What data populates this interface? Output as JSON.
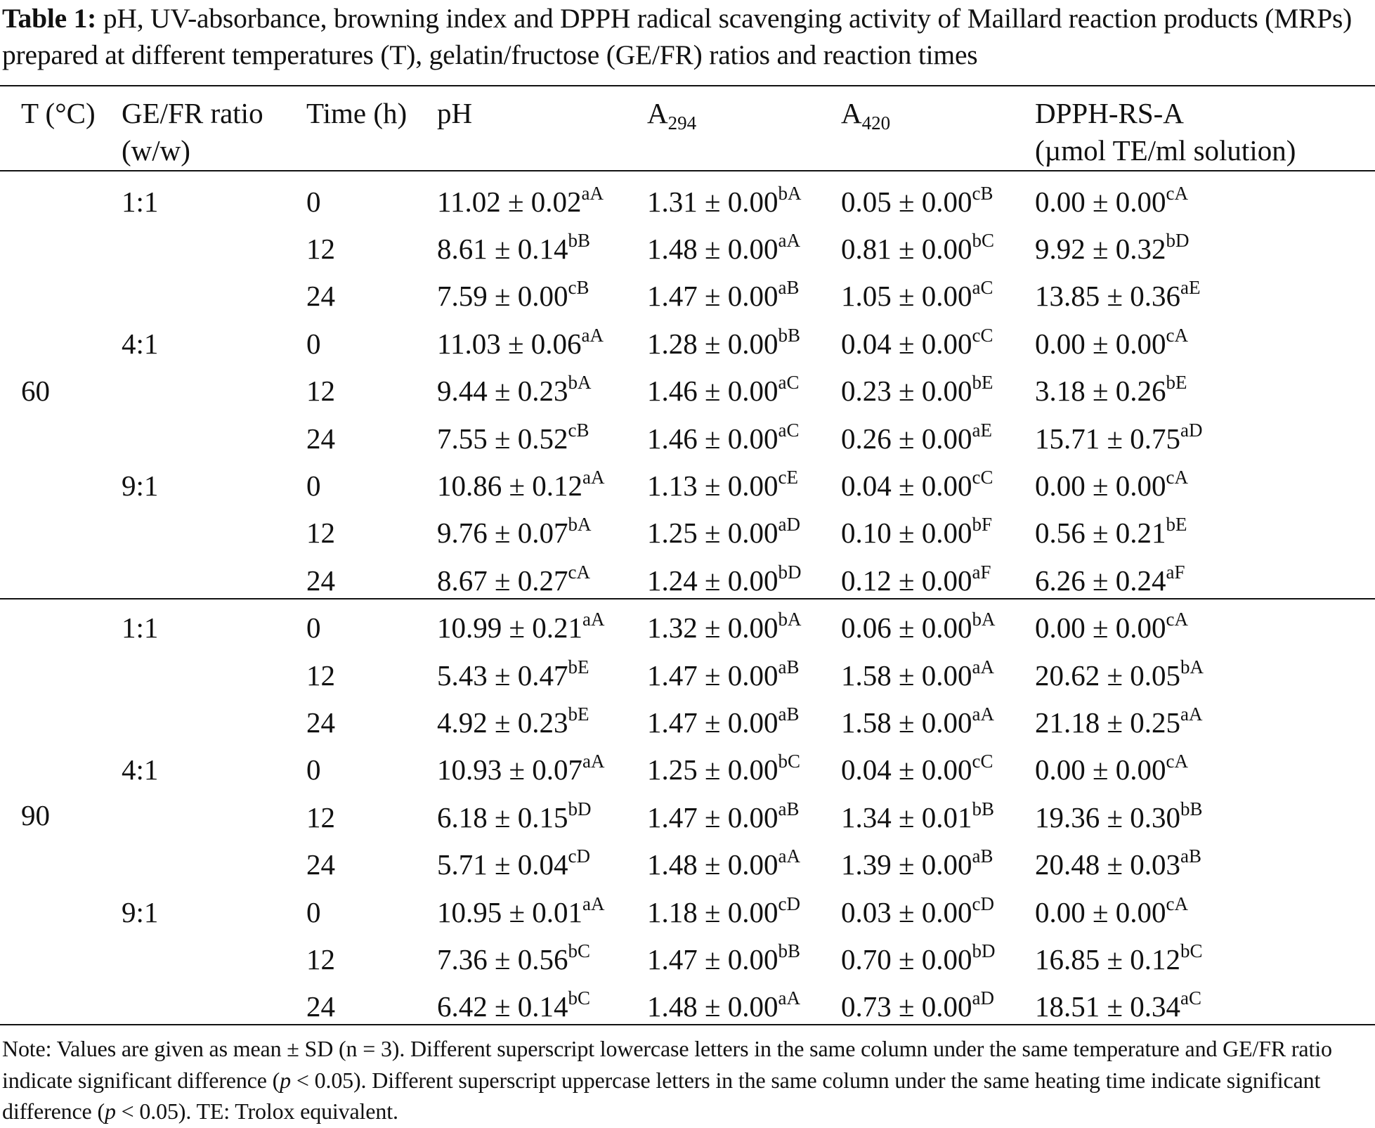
{
  "caption": {
    "label": "Table 1:",
    "text": "pH, UV-absorbance, browning index and DPPH radical scavenging activity of Maillard reaction products (MRPs) prepared at different temperatures (T), gelatin/fructose (GE/FR) ratios and reaction times"
  },
  "headers": {
    "temp": "T (°C)",
    "ratio_line1": "GE/FR ratio",
    "ratio_line2": "(w/w)",
    "time": "Time (h)",
    "ph": "pH",
    "a294_base": "A",
    "a294_sub": "294",
    "a420_base": "A",
    "a420_sub": "420",
    "dpph_line1": "DPPH-RS-A",
    "dpph_line2": "(µmol TE/ml solution)"
  },
  "groups": [
    {
      "temp": "60",
      "rows": [
        {
          "ratio": "1:1",
          "time": "0",
          "ph": "11.02 ± 0.02",
          "ph_sup": "aA",
          "a294": "1.31 ± 0.00",
          "a294_sup": "bA",
          "a420": "0.05 ± 0.00",
          "a420_sup": "cB",
          "dpph": "0.00 ± 0.00",
          "dpph_sup": "cA"
        },
        {
          "ratio": "",
          "time": "12",
          "ph": "8.61 ± 0.14",
          "ph_sup": "bB",
          "a294": "1.48 ± 0.00",
          "a294_sup": "aA",
          "a420": "0.81 ± 0.00",
          "a420_sup": "bC",
          "dpph": "9.92 ± 0.32",
          "dpph_sup": "bD"
        },
        {
          "ratio": "",
          "time": "24",
          "ph": "7.59 ± 0.00",
          "ph_sup": "cB",
          "a294": "1.47 ± 0.00",
          "a294_sup": "aB",
          "a420": "1.05 ± 0.00",
          "a420_sup": "aC",
          "dpph": "13.85 ± 0.36",
          "dpph_sup": "aE"
        },
        {
          "ratio": "4:1",
          "time": "0",
          "ph": "11.03 ± 0.06",
          "ph_sup": "aA",
          "a294": "1.28 ± 0.00",
          "a294_sup": "bB",
          "a420": "0.04 ± 0.00",
          "a420_sup": "cC",
          "dpph": "0.00 ± 0.00",
          "dpph_sup": "cA"
        },
        {
          "ratio": "",
          "time": "12",
          "ph": "9.44 ± 0.23",
          "ph_sup": "bA",
          "a294": "1.46 ± 0.00",
          "a294_sup": "aC",
          "a420": "0.23 ± 0.00",
          "a420_sup": "bE",
          "dpph": "3.18 ± 0.26",
          "dpph_sup": "bE"
        },
        {
          "ratio": "",
          "time": "24",
          "ph": "7.55 ± 0.52",
          "ph_sup": "cB",
          "a294": "1.46 ± 0.00",
          "a294_sup": "aC",
          "a420": "0.26 ± 0.00",
          "a420_sup": "aE",
          "dpph": "15.71 ± 0.75",
          "dpph_sup": "aD"
        },
        {
          "ratio": "9:1",
          "time": "0",
          "ph": "10.86 ± 0.12",
          "ph_sup": "aA",
          "a294": "1.13 ± 0.00",
          "a294_sup": "cE",
          "a420": "0.04 ± 0.00",
          "a420_sup": "cC",
          "dpph": "0.00 ± 0.00",
          "dpph_sup": "cA"
        },
        {
          "ratio": "",
          "time": "12",
          "ph": "9.76 ± 0.07",
          "ph_sup": "bA",
          "a294": "1.25 ± 0.00",
          "a294_sup": "aD",
          "a420": "0.10 ± 0.00",
          "a420_sup": "bF",
          "dpph": "0.56 ± 0.21",
          "dpph_sup": "bE"
        },
        {
          "ratio": "",
          "time": "24",
          "ph": "8.67 ± 0.27",
          "ph_sup": "cA",
          "a294": "1.24 ± 0.00",
          "a294_sup": "bD",
          "a420": "0.12 ± 0.00",
          "a420_sup": "aF",
          "dpph": "6.26 ± 0.24",
          "dpph_sup": "aF"
        }
      ]
    },
    {
      "temp": "90",
      "rows": [
        {
          "ratio": "1:1",
          "time": "0",
          "ph": "10.99 ± 0.21",
          "ph_sup": "aA",
          "a294": "1.32 ± 0.00",
          "a294_sup": "bA",
          "a420": "0.06 ± 0.00",
          "a420_sup": "bA",
          "dpph": "0.00 ± 0.00",
          "dpph_sup": "cA"
        },
        {
          "ratio": "",
          "time": "12",
          "ph": "5.43 ± 0.47",
          "ph_sup": "bE",
          "a294": "1.47 ± 0.00",
          "a294_sup": "aB",
          "a420": "1.58 ± 0.00",
          "a420_sup": "aA",
          "dpph": "20.62 ± 0.05",
          "dpph_sup": "bA"
        },
        {
          "ratio": "",
          "time": "24",
          "ph": "4.92 ± 0.23",
          "ph_sup": "bE",
          "a294": "1.47 ± 0.00",
          "a294_sup": "aB",
          "a420": "1.58 ± 0.00",
          "a420_sup": "aA",
          "dpph": "21.18 ± 0.25",
          "dpph_sup": "aA"
        },
        {
          "ratio": "4:1",
          "time": "0",
          "ph": "10.93 ± 0.07",
          "ph_sup": "aA",
          "a294": "1.25 ± 0.00",
          "a294_sup": "bC",
          "a420": "0.04 ± 0.00",
          "a420_sup": "cC",
          "dpph": "0.00 ± 0.00",
          "dpph_sup": "cA"
        },
        {
          "ratio": "",
          "time": "12",
          "ph": "6.18 ± 0.15",
          "ph_sup": "bD",
          "a294": "1.47 ± 0.00",
          "a294_sup": "aB",
          "a420": "1.34 ± 0.01",
          "a420_sup": "bB",
          "dpph": "19.36 ± 0.30",
          "dpph_sup": "bB"
        },
        {
          "ratio": "",
          "time": "24",
          "ph": "5.71 ± 0.04",
          "ph_sup": "cD",
          "a294": "1.48 ± 0.00",
          "a294_sup": "aA",
          "a420": "1.39 ± 0.00",
          "a420_sup": "aB",
          "dpph": "20.48 ± 0.03",
          "dpph_sup": "aB"
        },
        {
          "ratio": "9:1",
          "time": "0",
          "ph": "10.95 ± 0.01",
          "ph_sup": "aA",
          "a294": "1.18 ± 0.00",
          "a294_sup": "cD",
          "a420": "0.03 ± 0.00",
          "a420_sup": "cD",
          "dpph": "0.00 ± 0.00",
          "dpph_sup": "cA"
        },
        {
          "ratio": "",
          "time": "12",
          "ph": "7.36 ± 0.56",
          "ph_sup": "bC",
          "a294": "1.47 ± 0.00",
          "a294_sup": "bB",
          "a420": "0.70 ± 0.00",
          "a420_sup": "bD",
          "dpph": "16.85 ± 0.12",
          "dpph_sup": "bC"
        },
        {
          "ratio": "",
          "time": "24",
          "ph": "6.42 ± 0.14",
          "ph_sup": "bC",
          "a294": "1.48 ± 0.00",
          "a294_sup": "aA",
          "a420": "0.73 ± 0.00",
          "a420_sup": "aD",
          "dpph": "18.51 ± 0.34",
          "dpph_sup": "aC"
        }
      ]
    }
  ],
  "note": {
    "part1": "Note: Values are given as mean ± SD (n = 3). Different superscript lowercase letters in the same column under the same temperature and GE/FR ratio indicate significant difference (",
    "p1": "p",
    "part2": " < 0.05). Different superscript uppercase letters in the same column under the same heating time indicate significant difference (",
    "p2": "p",
    "part3": " < 0.05). TE: Trolox equivalent."
  }
}
